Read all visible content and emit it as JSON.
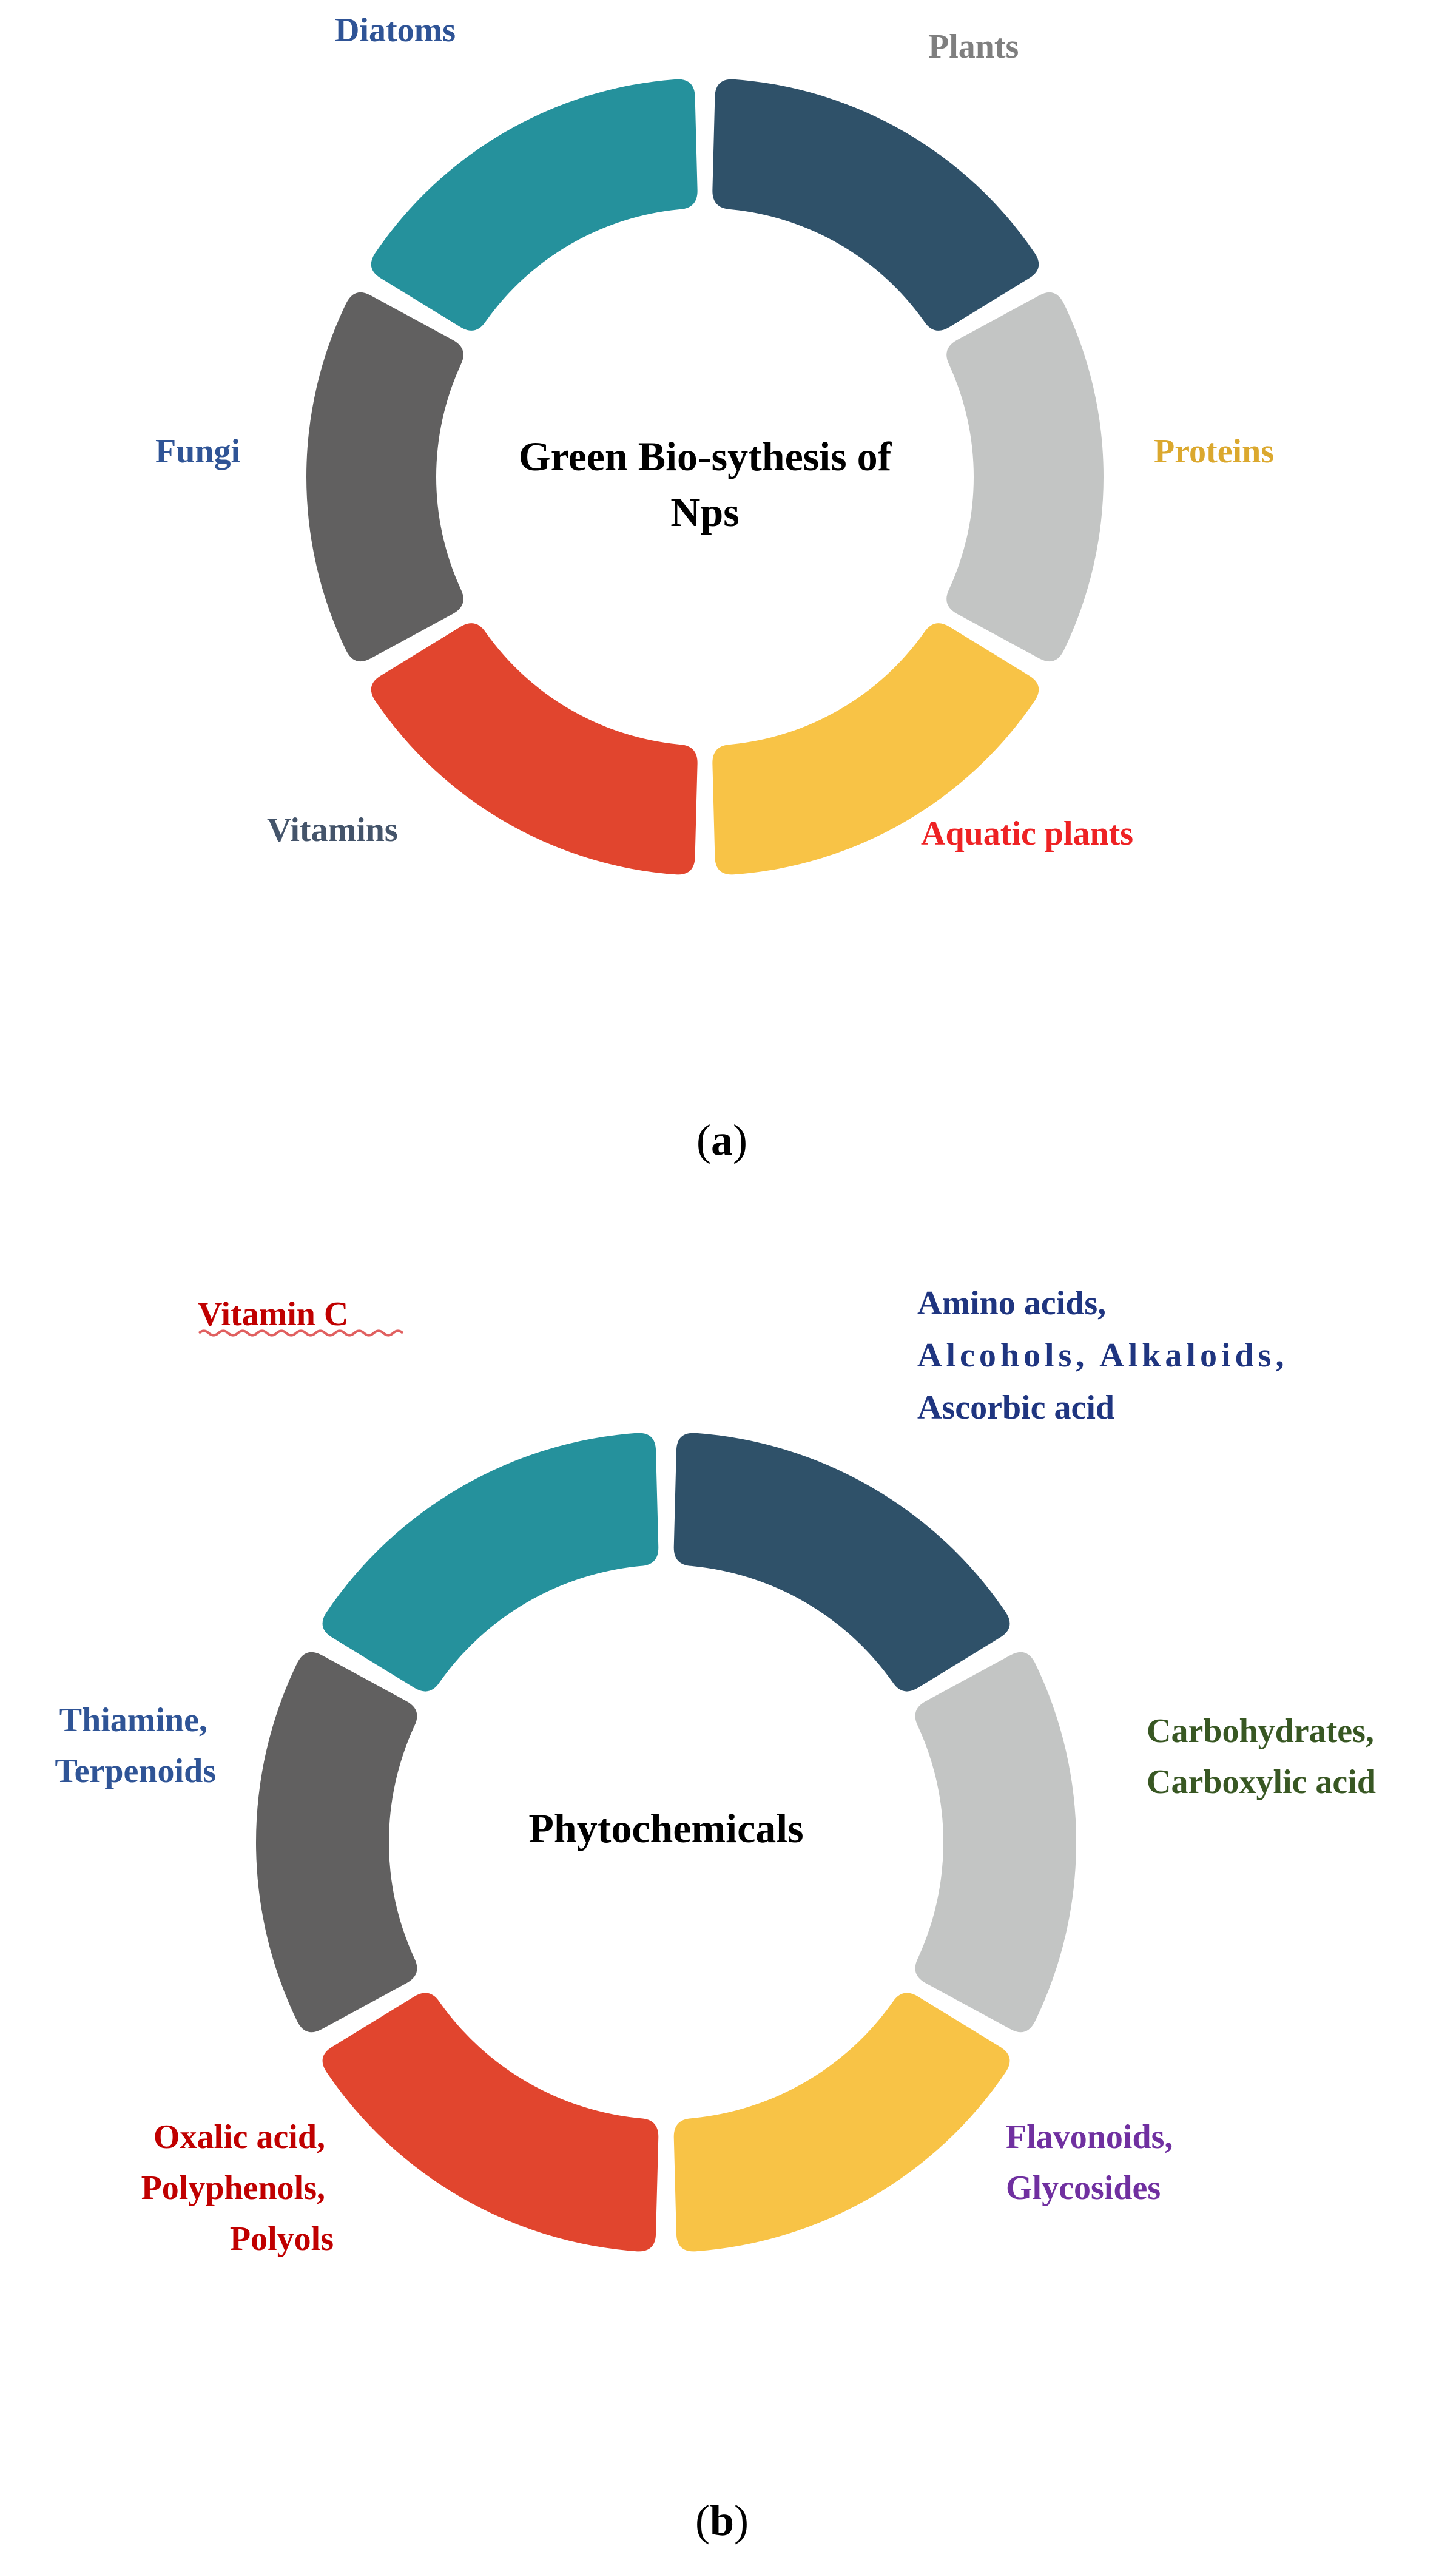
{
  "panel_a": {
    "center_line1": "Green Bio-sythesis of",
    "center_line2": "Nps",
    "caption_open": "(",
    "caption_letter": "a",
    "caption_close": ")",
    "labels": {
      "diatoms": "Diatoms",
      "plants": "Plants",
      "proteins": "Proteins",
      "aquatic_plants": "Aquatic plants",
      "vitamins": "Vitamins",
      "fungi": "Fungi"
    }
  },
  "panel_b": {
    "center": "Phytochemicals",
    "caption_open": "(",
    "caption_letter": "b",
    "caption_close": ")",
    "labels": {
      "vitamin_c": "Vitamin C",
      "amino_line1": "Amino acids,",
      "amino_line2": "Alcohols, Alkaloids,",
      "amino_line3": "Ascorbic acid",
      "carbo_line1": "Carbohydrates,",
      "carbo_line2": "Carboxylic acid",
      "flavo_line1": "Flavonoids,",
      "flavo_line2": "Glycosides",
      "oxalic_line1": "Oxalic acid,",
      "oxalic_line2": "Polyphenols,",
      "oxalic_line3": "Polyols",
      "thiamine_line1": "Thiamine,",
      "thiamine_line2": "Terpenoids"
    }
  },
  "colors": {
    "segment_navy": "#2f5169",
    "segment_lightgray": "#c3c5c4",
    "segment_yellow": "#f8c346",
    "segment_red": "#e1452e",
    "segment_darkgray": "#616060",
    "segment_teal": "#25919c",
    "text_diatoms": "#2f5496",
    "text_plants": "#7f7f7f",
    "text_proteins": "#dba82e",
    "text_aquatic": "#ee2224",
    "text_vitamins": "#44546a",
    "text_fungi": "#2f5496",
    "text_vitamin_c": "#c00000",
    "text_amino": "#1f3580",
    "text_carbo": "#385723",
    "text_flavo": "#7030a0",
    "text_oxalic": "#c00000",
    "text_thiamine": "#2f5496"
  }
}
